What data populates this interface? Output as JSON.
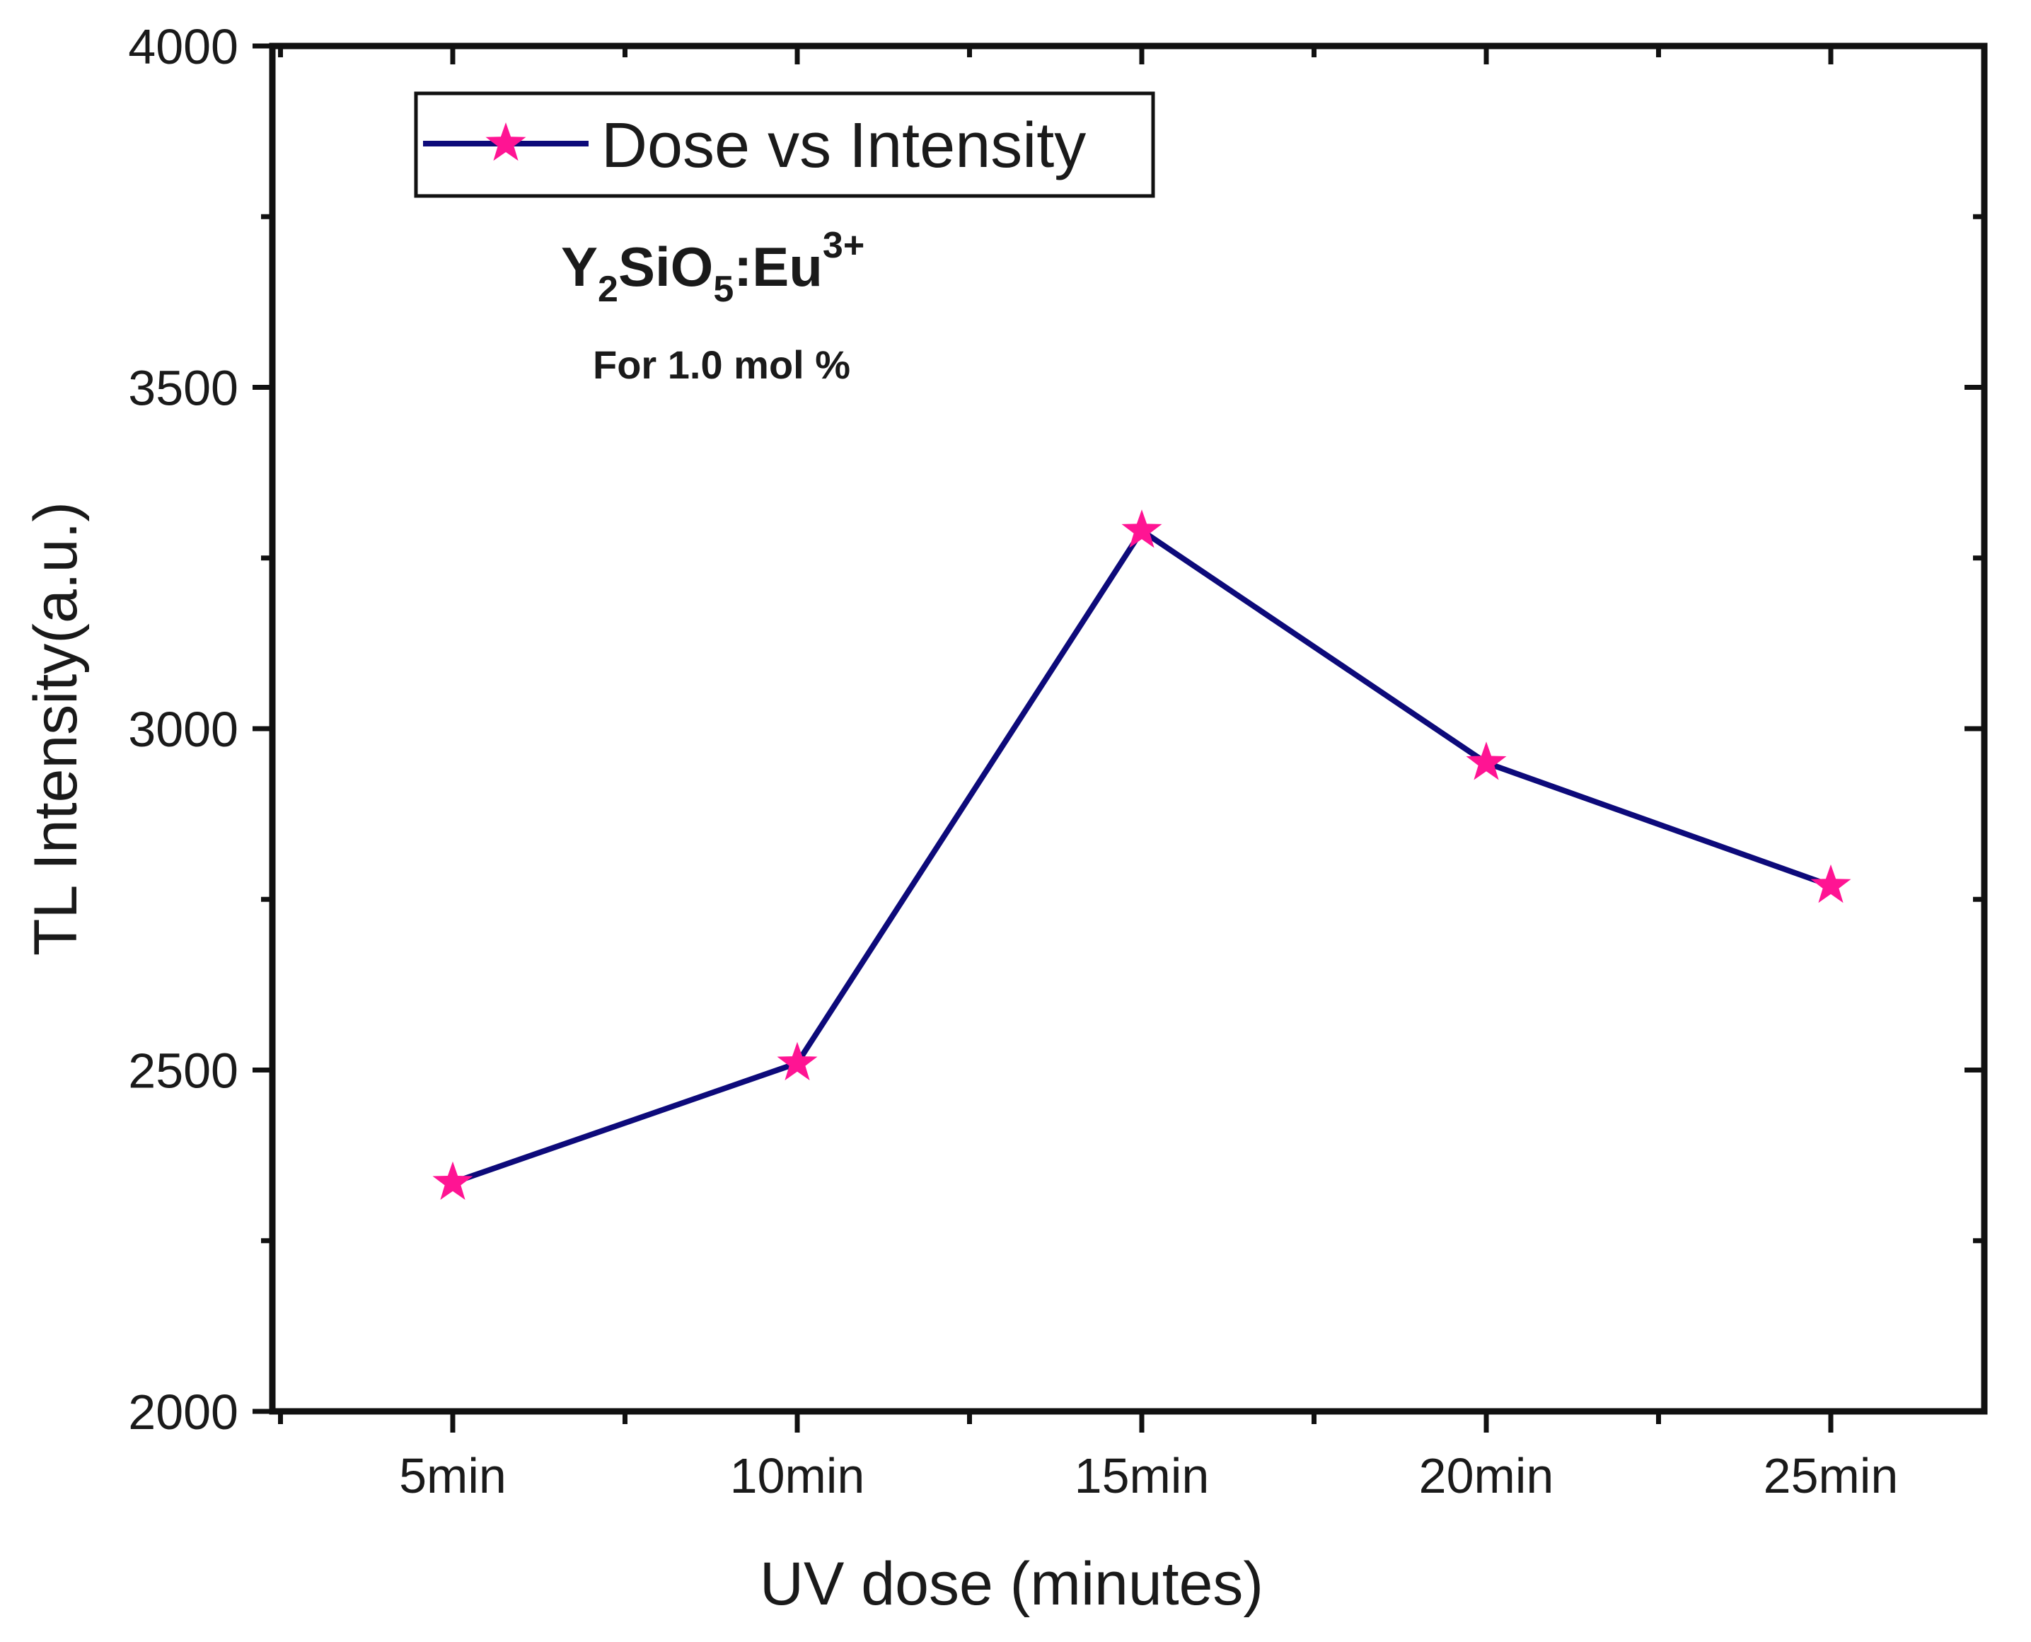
{
  "chart_data": {
    "type": "line",
    "title": "",
    "xlabel": "UV dose (minutes)",
    "ylabel": "TL Intensity(a.u.)",
    "categories": [
      "5min",
      "10min",
      "15min",
      "20min",
      "25min"
    ],
    "series": [
      {
        "name": "Dose vs Intensity",
        "values": [
          2335,
          2510,
          3290,
          2950,
          2770
        ],
        "line_color": "#0d0a7a",
        "marker": "star",
        "marker_color": "#ff1493"
      }
    ],
    "ylim": [
      2000,
      4000
    ],
    "yticks": [
      "2000",
      "2500",
      "3000",
      "3500",
      "4000"
    ],
    "legend": {
      "position": "top-left",
      "label": "Dose vs Intensity"
    },
    "grid": false,
    "annotations": {
      "formula": {
        "base1": "Y",
        "sub1": "2",
        "base2": "SiO",
        "sub2": "5",
        "base3": ":Eu",
        "sup": "3+"
      },
      "concentration": "For 1.0 mol %"
    }
  }
}
